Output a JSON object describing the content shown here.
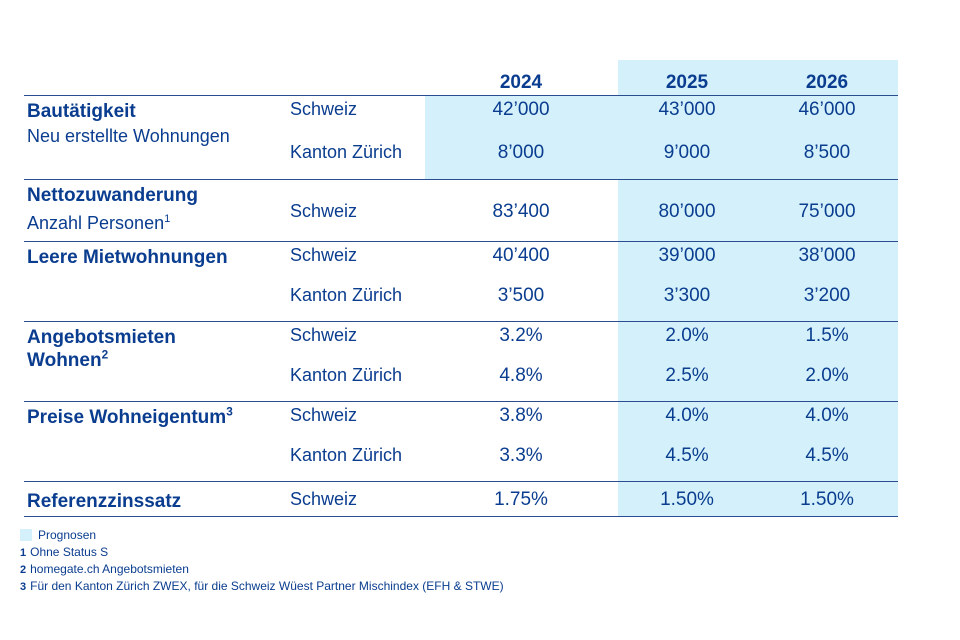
{
  "chart_data": {
    "type": "table",
    "columns": [
      "2024",
      "2025",
      "2026"
    ],
    "forecast_columns": [
      "2025",
      "2026"
    ],
    "rows": [
      {
        "category": "Bautätigkeit",
        "subtitle": "Neu erstellte Wohnungen",
        "subtitle_footnote": "",
        "category_footnote": "",
        "lines": [
          {
            "region": "Schweiz",
            "values": [
              "42’000",
              "43’000",
              "46’000"
            ]
          },
          {
            "region": "Kanton Zürich",
            "values": [
              "8’000",
              "9’000",
              "8’500"
            ]
          }
        ]
      },
      {
        "category": "Nettozuwanderung",
        "subtitle": "Anzahl Personen",
        "subtitle_footnote": "1",
        "category_footnote": "",
        "lines": [
          {
            "region": "Schweiz",
            "values": [
              "83’400",
              "80’000",
              "75’000"
            ]
          }
        ]
      },
      {
        "category": "Leere Mietwohnungen",
        "subtitle": "",
        "subtitle_footnote": "",
        "category_footnote": "",
        "lines": [
          {
            "region": "Schweiz",
            "values": [
              "40’400",
              "39’000",
              "38’000"
            ]
          },
          {
            "region": "Kanton Zürich",
            "values": [
              "3’500",
              "3’300",
              "3’200"
            ]
          }
        ]
      },
      {
        "category": "Angebotsmieten",
        "category_line2": "Wohnen",
        "subtitle": "",
        "subtitle_footnote": "",
        "category_footnote": "2",
        "lines": [
          {
            "region": "Schweiz",
            "values": [
              "3.2%",
              "2.0%",
              "1.5%"
            ]
          },
          {
            "region": "Kanton Zürich",
            "values": [
              "4.8%",
              "2.5%",
              "2.0%"
            ]
          }
        ]
      },
      {
        "category": "Preise Wohneigentum",
        "subtitle": "",
        "subtitle_footnote": "",
        "category_footnote": "3",
        "lines": [
          {
            "region": "Schweiz",
            "values": [
              "3.8%",
              "4.0%",
              "4.0%"
            ]
          },
          {
            "region": "Kanton Zürich",
            "values": [
              "3.3%",
              "4.5%",
              "4.5%"
            ]
          }
        ]
      },
      {
        "category": "Referenzzinssatz",
        "subtitle": "",
        "subtitle_footnote": "",
        "category_footnote": "",
        "lines": [
          {
            "region": "Schweiz",
            "values": [
              "1.75%",
              "1.50%",
              "1.50%"
            ]
          }
        ]
      }
    ]
  },
  "legend": {
    "label": "Prognosen"
  },
  "footnotes": [
    {
      "mark": "1",
      "text": "Ohne Status S"
    },
    {
      "mark": "2",
      "text": "homegate.ch Angebotsmieten"
    },
    {
      "mark": "3",
      "text": "Für den Kanton Zürich ZWEX, für die Schweiz Wüest Partner Mischindex (EFH & STWE)"
    }
  ],
  "colors": {
    "text": "#0a3d8f",
    "forecast_shade": "#d4f1fb",
    "rule": "#2a4d8f"
  }
}
